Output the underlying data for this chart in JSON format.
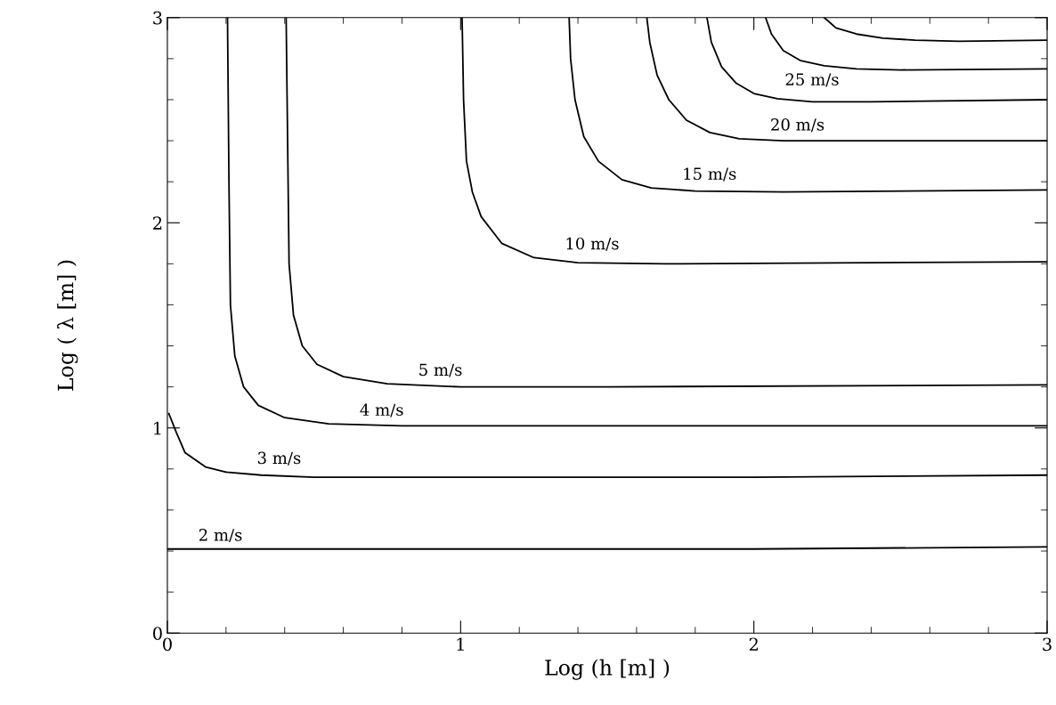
{
  "chart_data": {
    "type": "line",
    "xlabel": "Log (h [m] )",
    "ylabel": "Log ( λ [m] )",
    "xlim": [
      0,
      3
    ],
    "ylim": [
      0,
      3
    ],
    "xticks": [
      0,
      1,
      2,
      3
    ],
    "yticks": [
      0,
      1,
      2,
      3
    ],
    "grid": false,
    "legend": false,
    "marker": "none",
    "line_style": "solid",
    "series": [
      {
        "name": "2 m/s",
        "color": "#000000",
        "x": [
          0.0,
          1.0,
          2.0,
          3.0
        ],
        "values": [
          0.41,
          0.41,
          0.41,
          0.42
        ]
      },
      {
        "name": "3 m/s",
        "color": "#000000",
        "x": [
          0.005,
          0.03,
          0.06,
          0.13,
          0.2,
          0.32,
          0.5,
          1.0,
          2.0,
          3.0
        ],
        "values": [
          1.07,
          0.98,
          0.88,
          0.81,
          0.785,
          0.77,
          0.76,
          0.76,
          0.76,
          0.77
        ]
      },
      {
        "name": "4 m/s",
        "color": "#000000",
        "x": [
          0.205,
          0.21,
          0.215,
          0.23,
          0.26,
          0.31,
          0.4,
          0.55,
          0.8,
          1.5,
          3.0
        ],
        "values": [
          3.0,
          2.2,
          1.6,
          1.35,
          1.2,
          1.11,
          1.05,
          1.02,
          1.01,
          1.01,
          1.01
        ]
      },
      {
        "name": "5 m/s",
        "color": "#000000",
        "x": [
          0.405,
          0.41,
          0.415,
          0.43,
          0.46,
          0.51,
          0.6,
          0.75,
          1.0,
          1.5,
          3.0
        ],
        "values": [
          3.0,
          2.4,
          1.8,
          1.55,
          1.4,
          1.31,
          1.25,
          1.215,
          1.2,
          1.2,
          1.21
        ]
      },
      {
        "name": "10 m/s",
        "color": "#000000",
        "x": [
          1.005,
          1.01,
          1.02,
          1.04,
          1.07,
          1.14,
          1.25,
          1.4,
          1.7,
          3.0
        ],
        "values": [
          3.0,
          2.6,
          2.3,
          2.15,
          2.03,
          1.9,
          1.83,
          1.805,
          1.8,
          1.81
        ]
      },
      {
        "name": "15 m/s",
        "color": "#000000",
        "x": [
          1.37,
          1.375,
          1.39,
          1.42,
          1.47,
          1.55,
          1.65,
          1.8,
          2.1,
          3.0
        ],
        "values": [
          3.0,
          2.8,
          2.6,
          2.42,
          2.3,
          2.21,
          2.17,
          2.155,
          2.15,
          2.16
        ]
      },
      {
        "name": "20 m/s",
        "color": "#000000",
        "x": [
          1.635,
          1.645,
          1.67,
          1.71,
          1.77,
          1.85,
          1.95,
          2.1,
          2.4,
          3.0
        ],
        "values": [
          3.0,
          2.88,
          2.72,
          2.6,
          2.5,
          2.44,
          2.41,
          2.4,
          2.4,
          2.4
        ]
      },
      {
        "name": "25 m/s",
        "color": "#000000",
        "x": [
          1.84,
          1.855,
          1.89,
          1.94,
          2.0,
          2.08,
          2.2,
          2.4,
          3.0
        ],
        "values": [
          3.0,
          2.88,
          2.76,
          2.68,
          2.63,
          2.605,
          2.59,
          2.59,
          2.6
        ]
      },
      {
        "color": "#000000",
        "x": [
          2.04,
          2.06,
          2.1,
          2.16,
          2.24,
          2.35,
          2.5,
          3.0
        ],
        "values": [
          3.0,
          2.92,
          2.84,
          2.79,
          2.765,
          2.75,
          2.745,
          2.75
        ]
      },
      {
        "color": "#000000",
        "x": [
          2.24,
          2.28,
          2.35,
          2.44,
          2.55,
          2.7,
          3.0
        ],
        "values": [
          3.0,
          2.95,
          2.92,
          2.9,
          2.89,
          2.885,
          2.89
        ]
      }
    ]
  }
}
